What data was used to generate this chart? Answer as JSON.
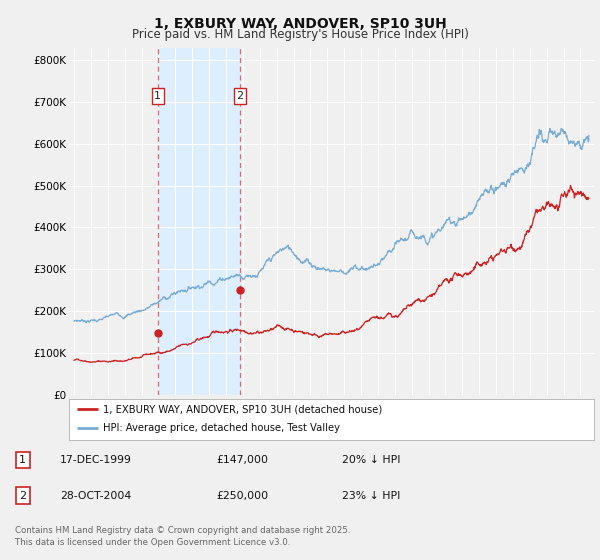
{
  "title": "1, EXBURY WAY, ANDOVER, SP10 3UH",
  "subtitle": "Price paid vs. HM Land Registry's House Price Index (HPI)",
  "ylim": [
    0,
    830000
  ],
  "yticks": [
    0,
    100000,
    200000,
    300000,
    400000,
    500000,
    600000,
    700000,
    800000
  ],
  "ytick_labels": [
    "£0",
    "£100K",
    "£200K",
    "£300K",
    "£400K",
    "£500K",
    "£600K",
    "£700K",
    "£800K"
  ],
  "hpi_color": "#7aadd4",
  "price_color": "#cc2222",
  "shade_color": "#ddeeff",
  "xlim_left": 1994.7,
  "xlim_right": 2025.8,
  "purchase1_date": 1999.96,
  "purchase1_price": 147000,
  "purchase1_label": "1",
  "purchase2_date": 2004.83,
  "purchase2_price": 250000,
  "purchase2_label": "2",
  "legend_line1": "1, EXBURY WAY, ANDOVER, SP10 3UH (detached house)",
  "legend_line2": "HPI: Average price, detached house, Test Valley",
  "table_row1": [
    "1",
    "17-DEC-1999",
    "£147,000",
    "20% ↓ HPI"
  ],
  "table_row2": [
    "2",
    "28-OCT-2004",
    "£250,000",
    "23% ↓ HPI"
  ],
  "footnote": "Contains HM Land Registry data © Crown copyright and database right 2025.\nThis data is licensed under the Open Government Licence v3.0.",
  "background_color": "#f0f0f0",
  "grid_color": "#ffffff",
  "title_fontsize": 10,
  "subtitle_fontsize": 8.5,
  "tick_fontsize": 7.5
}
